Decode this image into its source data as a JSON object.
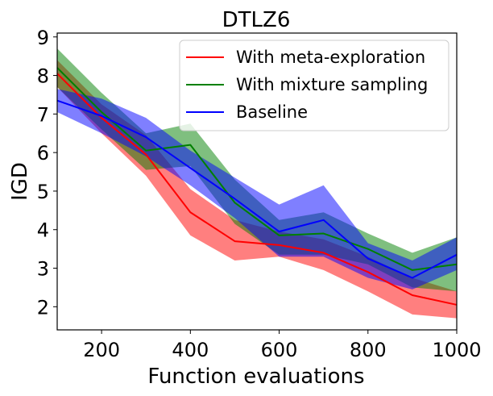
{
  "chart_data": {
    "type": "line",
    "title": "DTLZ6",
    "xlabel": "Function evaluations",
    "ylabel": "IGD",
    "xlim": [
      100,
      1000
    ],
    "ylim": [
      1.4,
      9.1
    ],
    "xticks": [
      200,
      400,
      600,
      800,
      1000
    ],
    "yticks": [
      2,
      3,
      4,
      5,
      6,
      7,
      8,
      9
    ],
    "legend_position": "top-right",
    "x": [
      100,
      200,
      300,
      400,
      500,
      600,
      700,
      800,
      900,
      1000
    ],
    "series": [
      {
        "name": "With meta-exploration",
        "color": "#ff0000",
        "values": [
          8.05,
          6.9,
          5.95,
          4.45,
          3.7,
          3.6,
          3.4,
          2.9,
          2.3,
          2.05
        ],
        "lower": [
          7.7,
          6.5,
          5.4,
          3.85,
          3.2,
          3.3,
          2.95,
          2.4,
          1.8,
          1.7
        ],
        "upper": [
          8.4,
          7.25,
          6.45,
          5.05,
          4.25,
          3.95,
          3.75,
          3.3,
          2.75,
          2.4
        ]
      },
      {
        "name": "With mixture sampling",
        "color": "#008000",
        "values": [
          8.2,
          7.05,
          6.05,
          6.2,
          4.7,
          3.85,
          3.9,
          3.5,
          2.95,
          3.1
        ],
        "lower": [
          7.7,
          6.6,
          5.55,
          5.65,
          4.15,
          3.35,
          3.35,
          3.1,
          2.5,
          2.4
        ],
        "upper": [
          8.7,
          7.55,
          6.5,
          6.75,
          5.3,
          4.25,
          4.45,
          3.9,
          3.4,
          3.8
        ]
      },
      {
        "name": "Baseline",
        "color": "#0000ff",
        "values": [
          7.35,
          6.95,
          6.4,
          5.6,
          4.8,
          3.95,
          4.25,
          3.25,
          2.75,
          3.35
        ],
        "lower": [
          7.05,
          6.5,
          5.9,
          5.15,
          4.3,
          3.3,
          3.3,
          2.75,
          2.45,
          2.95
        ],
        "upper": [
          7.65,
          7.4,
          6.9,
          6.05,
          5.35,
          4.65,
          5.15,
          3.65,
          3.2,
          3.8
        ]
      }
    ]
  }
}
